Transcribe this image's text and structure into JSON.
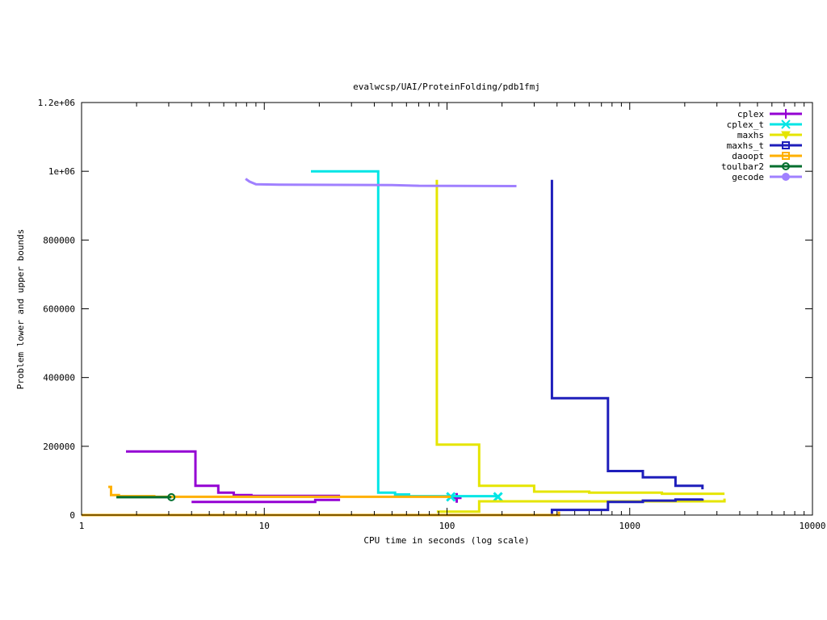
{
  "chart_data": {
    "type": "line",
    "title": "evalwcsp/UAI/ProteinFolding/pdb1fmj",
    "xlabel": "CPU time in seconds (log scale)",
    "ylabel": "Problem lower and upper bounds",
    "xscale": "log",
    "xlim": [
      1,
      10000
    ],
    "ylim": [
      0,
      1200000
    ],
    "x_ticks": [
      1,
      10,
      100,
      1000,
      10000
    ],
    "x_tick_labels": [
      "1",
      "10",
      "100",
      "1000",
      "10000"
    ],
    "y_ticks": [
      0,
      200000,
      400000,
      600000,
      800000,
      1000000,
      1200000
    ],
    "y_tick_labels": [
      "0",
      "200000",
      "400000",
      "600000",
      "800000",
      "1e+06",
      "1.2e+06"
    ],
    "grid": false,
    "legend_position": "top-right",
    "series": [
      {
        "name": "cplex",
        "color": "#9400d3",
        "marker": "plus",
        "segments": [
          [
            [
              1.75,
              185000
            ],
            [
              4.2,
              185000
            ],
            [
              4.2,
              85000
            ],
            [
              5.6,
              85000
            ],
            [
              5.6,
              65000
            ],
            [
              6.8,
              65000
            ],
            [
              6.8,
              58000
            ],
            [
              8.5,
              58000
            ],
            [
              8.5,
              56000
            ],
            [
              26,
              56000
            ]
          ],
          [
            [
              4,
              38000
            ],
            [
              19,
              38000
            ],
            [
              19,
              44000
            ],
            [
              26,
              44000
            ]
          ],
          [
            [
              1,
              0
            ],
            [
              113,
              0
            ]
          ]
        ],
        "markers": [
          [
            113,
            50000
          ]
        ]
      },
      {
        "name": "cplex_t",
        "color": "#00e5e5",
        "marker": "x",
        "segments": [
          [
            [
              18,
              1000000
            ],
            [
              42,
              1000000
            ],
            [
              42,
              65000
            ],
            [
              52,
              65000
            ],
            [
              52,
              60000
            ],
            [
              62,
              60000
            ],
            [
              62,
              55000
            ],
            [
              190,
              55000
            ]
          ],
          [
            [
              1,
              0
            ],
            [
              110,
              0
            ]
          ]
        ],
        "markers": [
          [
            105,
            53000
          ],
          [
            190,
            53000
          ]
        ]
      },
      {
        "name": "maxhs",
        "color": "#e5e500",
        "marker": "triangle",
        "segments": [
          [
            [
              88,
              975000
            ],
            [
              88,
              205000
            ],
            [
              150,
              205000
            ],
            [
              150,
              85000
            ],
            [
              300,
              85000
            ],
            [
              300,
              68000
            ],
            [
              600,
              68000
            ],
            [
              600,
              65000
            ],
            [
              1500,
              65000
            ],
            [
              1500,
              62000
            ],
            [
              3300,
              62000
            ]
          ],
          [
            [
              88,
              10000
            ],
            [
              150,
              10000
            ],
            [
              150,
              40000
            ],
            [
              3300,
              40000
            ],
            [
              3300,
              48000
            ]
          ],
          [
            [
              1,
              0
            ],
            [
              88,
              0
            ]
          ]
        ],
        "markers": []
      },
      {
        "name": "maxhs_t",
        "color": "#1e1ebb",
        "marker": "square",
        "segments": [
          [
            [
              375,
              975000
            ],
            [
              375,
              340000
            ],
            [
              760,
              340000
            ],
            [
              760,
              128000
            ],
            [
              1180,
              128000
            ],
            [
              1180,
              110000
            ],
            [
              1780,
              110000
            ],
            [
              1780,
              85000
            ],
            [
              2500,
              85000
            ],
            [
              2500,
              75000
            ]
          ],
          [
            [
              375,
              0
            ],
            [
              375,
              15000
            ],
            [
              760,
              15000
            ],
            [
              760,
              38000
            ],
            [
              1180,
              38000
            ],
            [
              1180,
              42000
            ],
            [
              1780,
              42000
            ],
            [
              1780,
              45000
            ],
            [
              2500,
              45000
            ],
            [
              2500,
              48000
            ]
          ]
        ],
        "markers": []
      },
      {
        "name": "daoopt",
        "color": "#ffb000",
        "marker": "square",
        "segments": [
          [
            [
              1.4,
              82000
            ],
            [
              1.45,
              82000
            ],
            [
              1.45,
              58000
            ],
            [
              1.6,
              58000
            ],
            [
              1.6,
              55000
            ],
            [
              2.5,
              55000
            ],
            [
              2.5,
              53000
            ],
            [
              105,
              53000
            ]
          ],
          [
            [
              1,
              0
            ],
            [
              410,
              0
            ],
            [
              410,
              10000
            ]
          ]
        ],
        "markers": []
      },
      {
        "name": "toulbar2",
        "color": "#006e2e",
        "marker": "circle",
        "segments": [
          [
            [
              1.55,
              52000
            ],
            [
              3.1,
              52000
            ]
          ]
        ],
        "markers": [
          [
            3.1,
            52000
          ]
        ]
      },
      {
        "name": "gecode",
        "color": "#a080ff",
        "marker": "dot",
        "segments": [
          [
            [
              7.9,
              978000
            ],
            [
              8.3,
              970000
            ],
            [
              9,
              962000
            ],
            [
              12,
              961000
            ],
            [
              50,
              960000
            ],
            [
              70,
              958000
            ],
            [
              240,
              957000
            ]
          ]
        ],
        "markers": []
      }
    ]
  }
}
